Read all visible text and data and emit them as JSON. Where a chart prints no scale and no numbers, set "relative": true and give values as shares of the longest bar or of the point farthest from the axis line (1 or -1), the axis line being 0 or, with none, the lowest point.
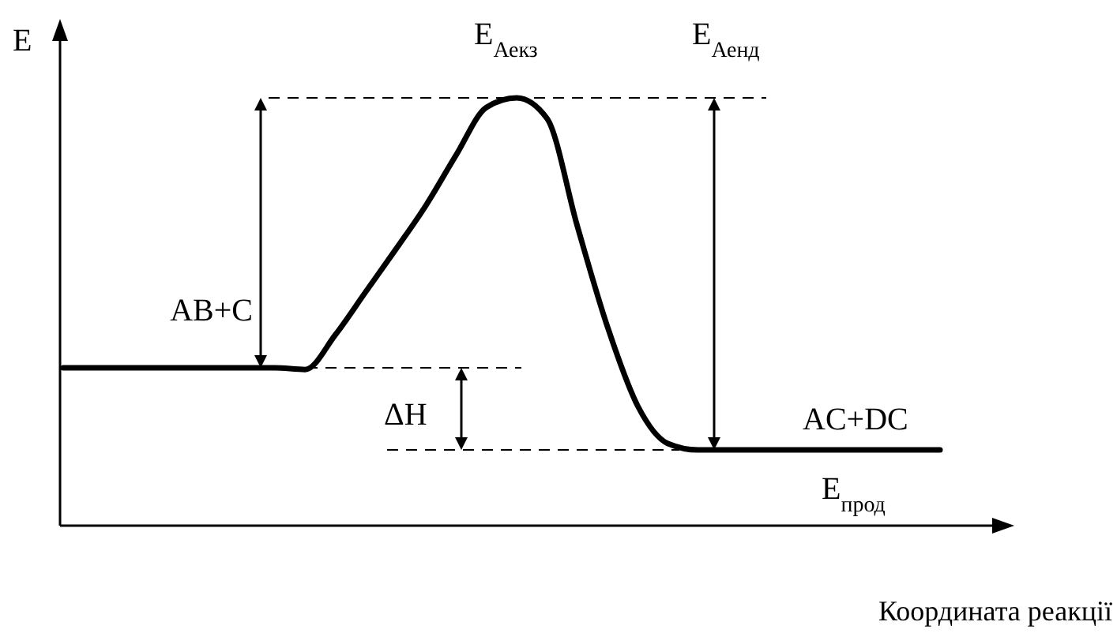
{
  "chart_data": {
    "type": "line",
    "relative": true,
    "xlabel": "Координата реакції",
    "ylabel": "E",
    "categories": [
      null,
      null,
      null,
      null,
      null,
      null,
      null,
      null,
      null,
      null,
      null,
      null,
      null,
      null,
      null,
      null,
      null,
      null,
      null,
      null,
      null,
      null,
      null,
      null,
      null,
      null,
      null,
      null,
      null,
      null
    ],
    "series": [
      {
        "color": "#000000",
        "values": [
          0.369,
          0.369,
          0.369,
          0.369,
          0.369,
          0.369,
          0.369,
          0.369,
          0.365,
          0.446,
          0.546,
          0.646,
          0.749,
          0.867,
          0.978,
          1,
          0.952,
          0.701,
          0.465,
          0.28,
          0.192,
          0.177,
          0.177,
          0.177,
          0.177,
          0.177,
          0.177,
          0.177,
          0.177,
          0.177
        ]
      }
    ],
    "ref_lines": [
      {
        "axis": "y",
        "value": 1,
        "line_style": "dashed",
        "color": "#000000"
      },
      {
        "axis": "y",
        "value": 0.369,
        "line_style": "dashed",
        "color": "#000000"
      },
      {
        "axis": "y",
        "value": 0.177,
        "line_style": "dashed",
        "color": "#000000"
      }
    ],
    "annotations": [
      "E$_{Аекз}$",
      "E$_{Аенд}$",
      "AB+C",
      "ΔH",
      "AC+DC",
      "E$_{прод}$"
    ],
    "line_style": "solid"
  }
}
